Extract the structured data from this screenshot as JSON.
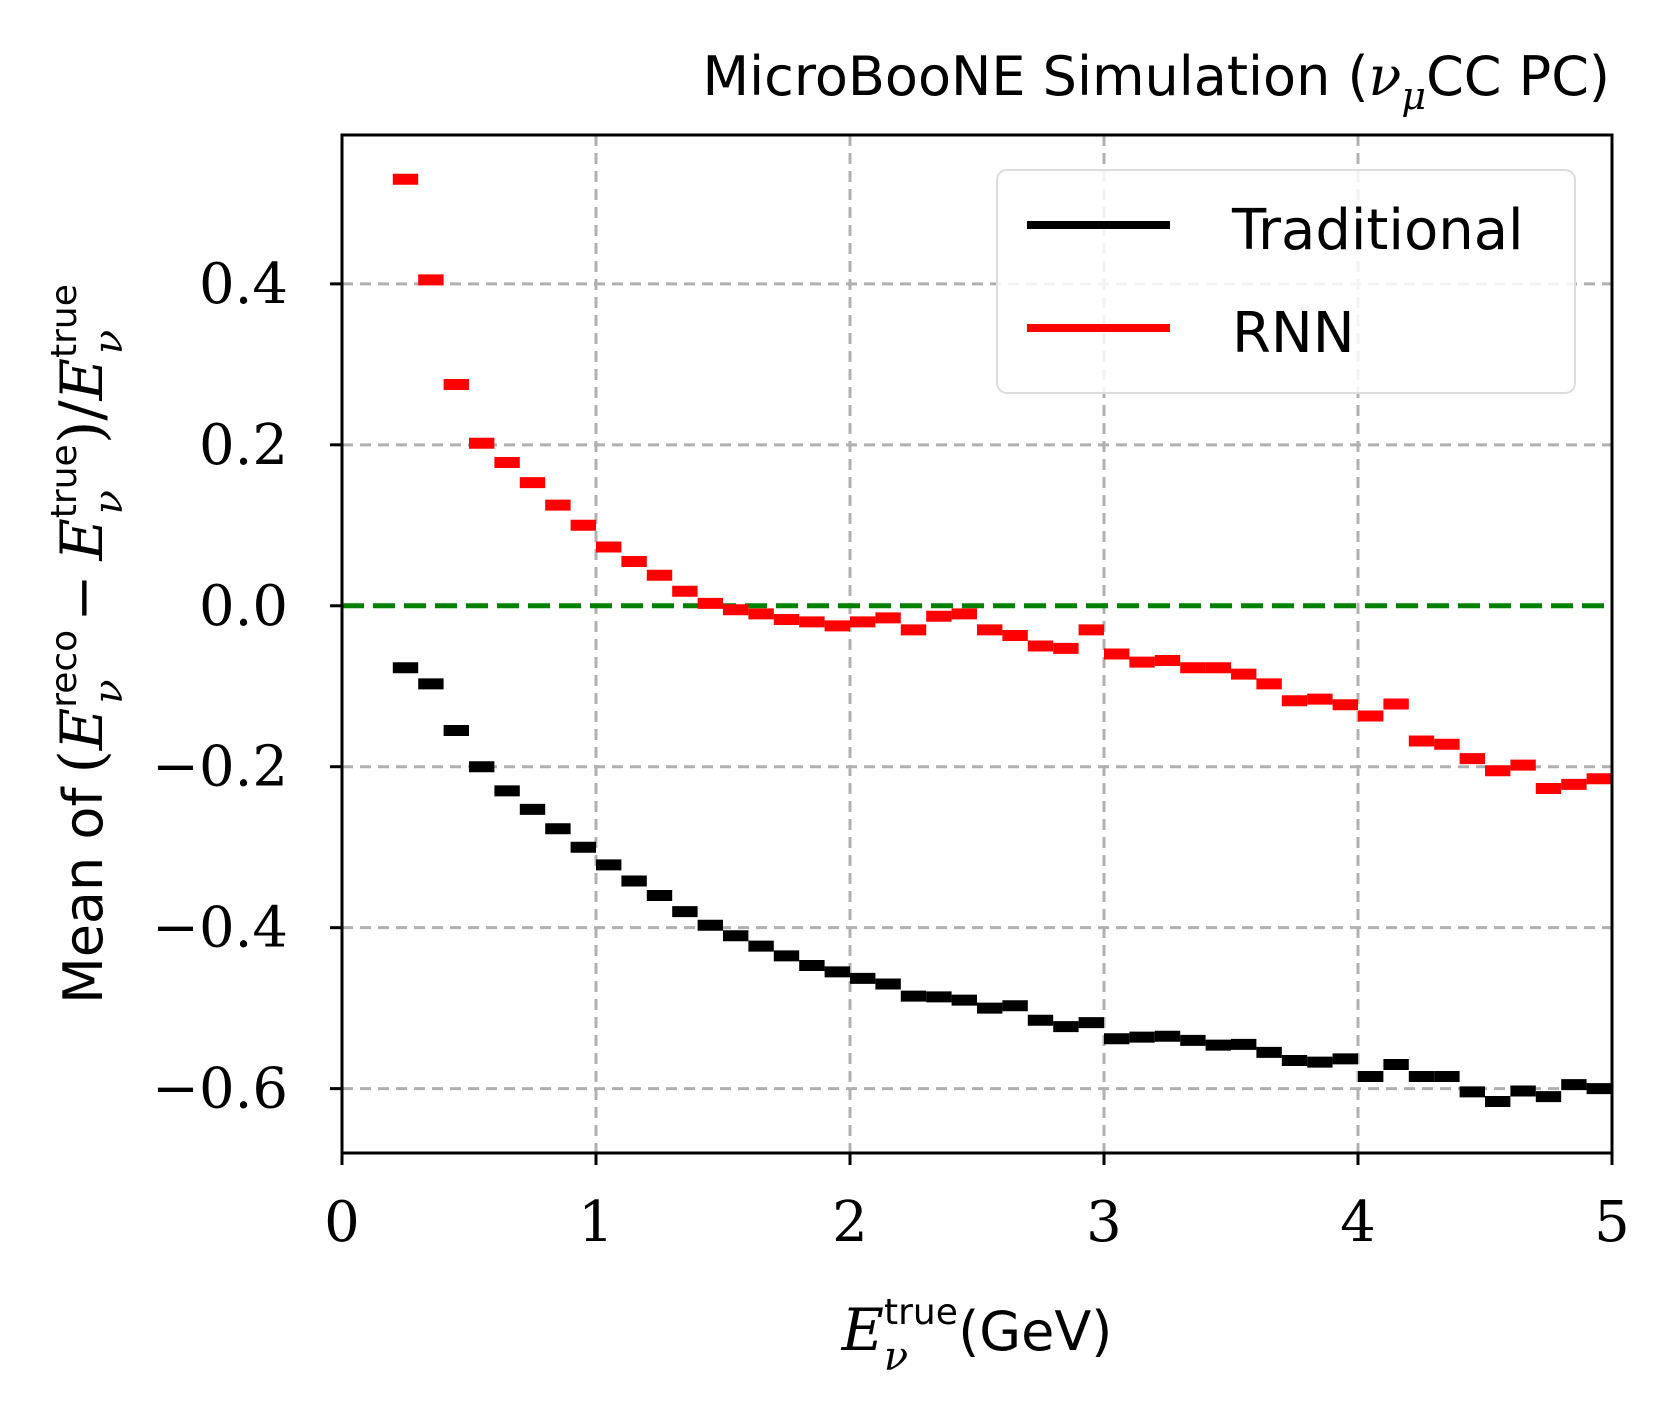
{
  "chart_data": {
    "type": "step",
    "title": {
      "main": "MicroBooNE Simulation (",
      "nu": "ν",
      "mu": "μ",
      "tail": "CC PC)"
    },
    "xlabel": {
      "E": "E",
      "sup": "true",
      "sub": "ν",
      "unit": "(GeV)"
    },
    "ylabel": {
      "prefix": "Mean of",
      "open": "(",
      "E": "E",
      "sup_reco": "reco",
      "sub": "ν",
      "minus": "−",
      "sup_true": "true",
      "close": ")",
      "slash": "/"
    },
    "xlim": [
      0,
      5
    ],
    "ylim": [
      -0.68,
      0.585
    ],
    "xticks": [
      0,
      1,
      2,
      3,
      4,
      5
    ],
    "xtick_labels": [
      "0",
      "1",
      "2",
      "3",
      "4",
      "5"
    ],
    "yticks": [
      -0.6,
      -0.4,
      -0.2,
      0.0,
      0.2,
      0.4
    ],
    "ytick_labels": [
      "−0.6",
      "−0.4",
      "−0.2",
      "0.0",
      "0.2",
      "0.4"
    ],
    "grid": true,
    "bin_width": 0.1,
    "bin_starts": [
      0.2,
      0.3,
      0.4,
      0.5,
      0.6,
      0.7,
      0.8,
      0.9,
      1.0,
      1.1,
      1.2,
      1.3,
      1.4,
      1.5,
      1.6,
      1.7,
      1.8,
      1.9,
      2.0,
      2.1,
      2.2,
      2.3,
      2.4,
      2.5,
      2.6,
      2.7,
      2.8,
      2.9,
      3.0,
      3.1,
      3.2,
      3.3,
      3.4,
      3.5,
      3.6,
      3.7,
      3.8,
      3.9,
      4.0,
      4.1,
      4.2,
      4.3,
      4.4,
      4.5,
      4.6,
      4.7,
      4.8,
      4.9
    ],
    "reference_line": {
      "y": 0.0,
      "color": "#008000",
      "style": "dashed"
    },
    "series": [
      {
        "name": "Traditional",
        "color": "#000000",
        "values": [
          -0.077,
          -0.097,
          -0.155,
          -0.2,
          -0.23,
          -0.253,
          -0.277,
          -0.3,
          -0.322,
          -0.342,
          -0.36,
          -0.38,
          -0.397,
          -0.41,
          -0.423,
          -0.435,
          -0.447,
          -0.455,
          -0.463,
          -0.47,
          -0.485,
          -0.486,
          -0.49,
          -0.5,
          -0.497,
          -0.515,
          -0.523,
          -0.518,
          -0.538,
          -0.536,
          -0.535,
          -0.54,
          -0.546,
          -0.545,
          -0.555,
          -0.565,
          -0.567,
          -0.563,
          -0.585,
          -0.57,
          -0.585,
          -0.585,
          -0.604,
          -0.616,
          -0.603,
          -0.61,
          -0.595,
          -0.6
        ]
      },
      {
        "name": "RNN",
        "color": "#ff0000",
        "values": [
          0.53,
          0.405,
          0.275,
          0.202,
          0.178,
          0.153,
          0.125,
          0.1,
          0.073,
          0.055,
          0.038,
          0.018,
          0.003,
          -0.005,
          -0.01,
          -0.017,
          -0.02,
          -0.025,
          -0.02,
          -0.015,
          -0.03,
          -0.013,
          -0.01,
          -0.03,
          -0.037,
          -0.05,
          -0.053,
          -0.03,
          -0.06,
          -0.07,
          -0.068,
          -0.077,
          -0.077,
          -0.085,
          -0.097,
          -0.118,
          -0.116,
          -0.123,
          -0.137,
          -0.122,
          -0.168,
          -0.172,
          -0.19,
          -0.205,
          -0.198,
          -0.227,
          -0.222,
          -0.215
        ]
      }
    ],
    "legend_position": "top-right"
  }
}
